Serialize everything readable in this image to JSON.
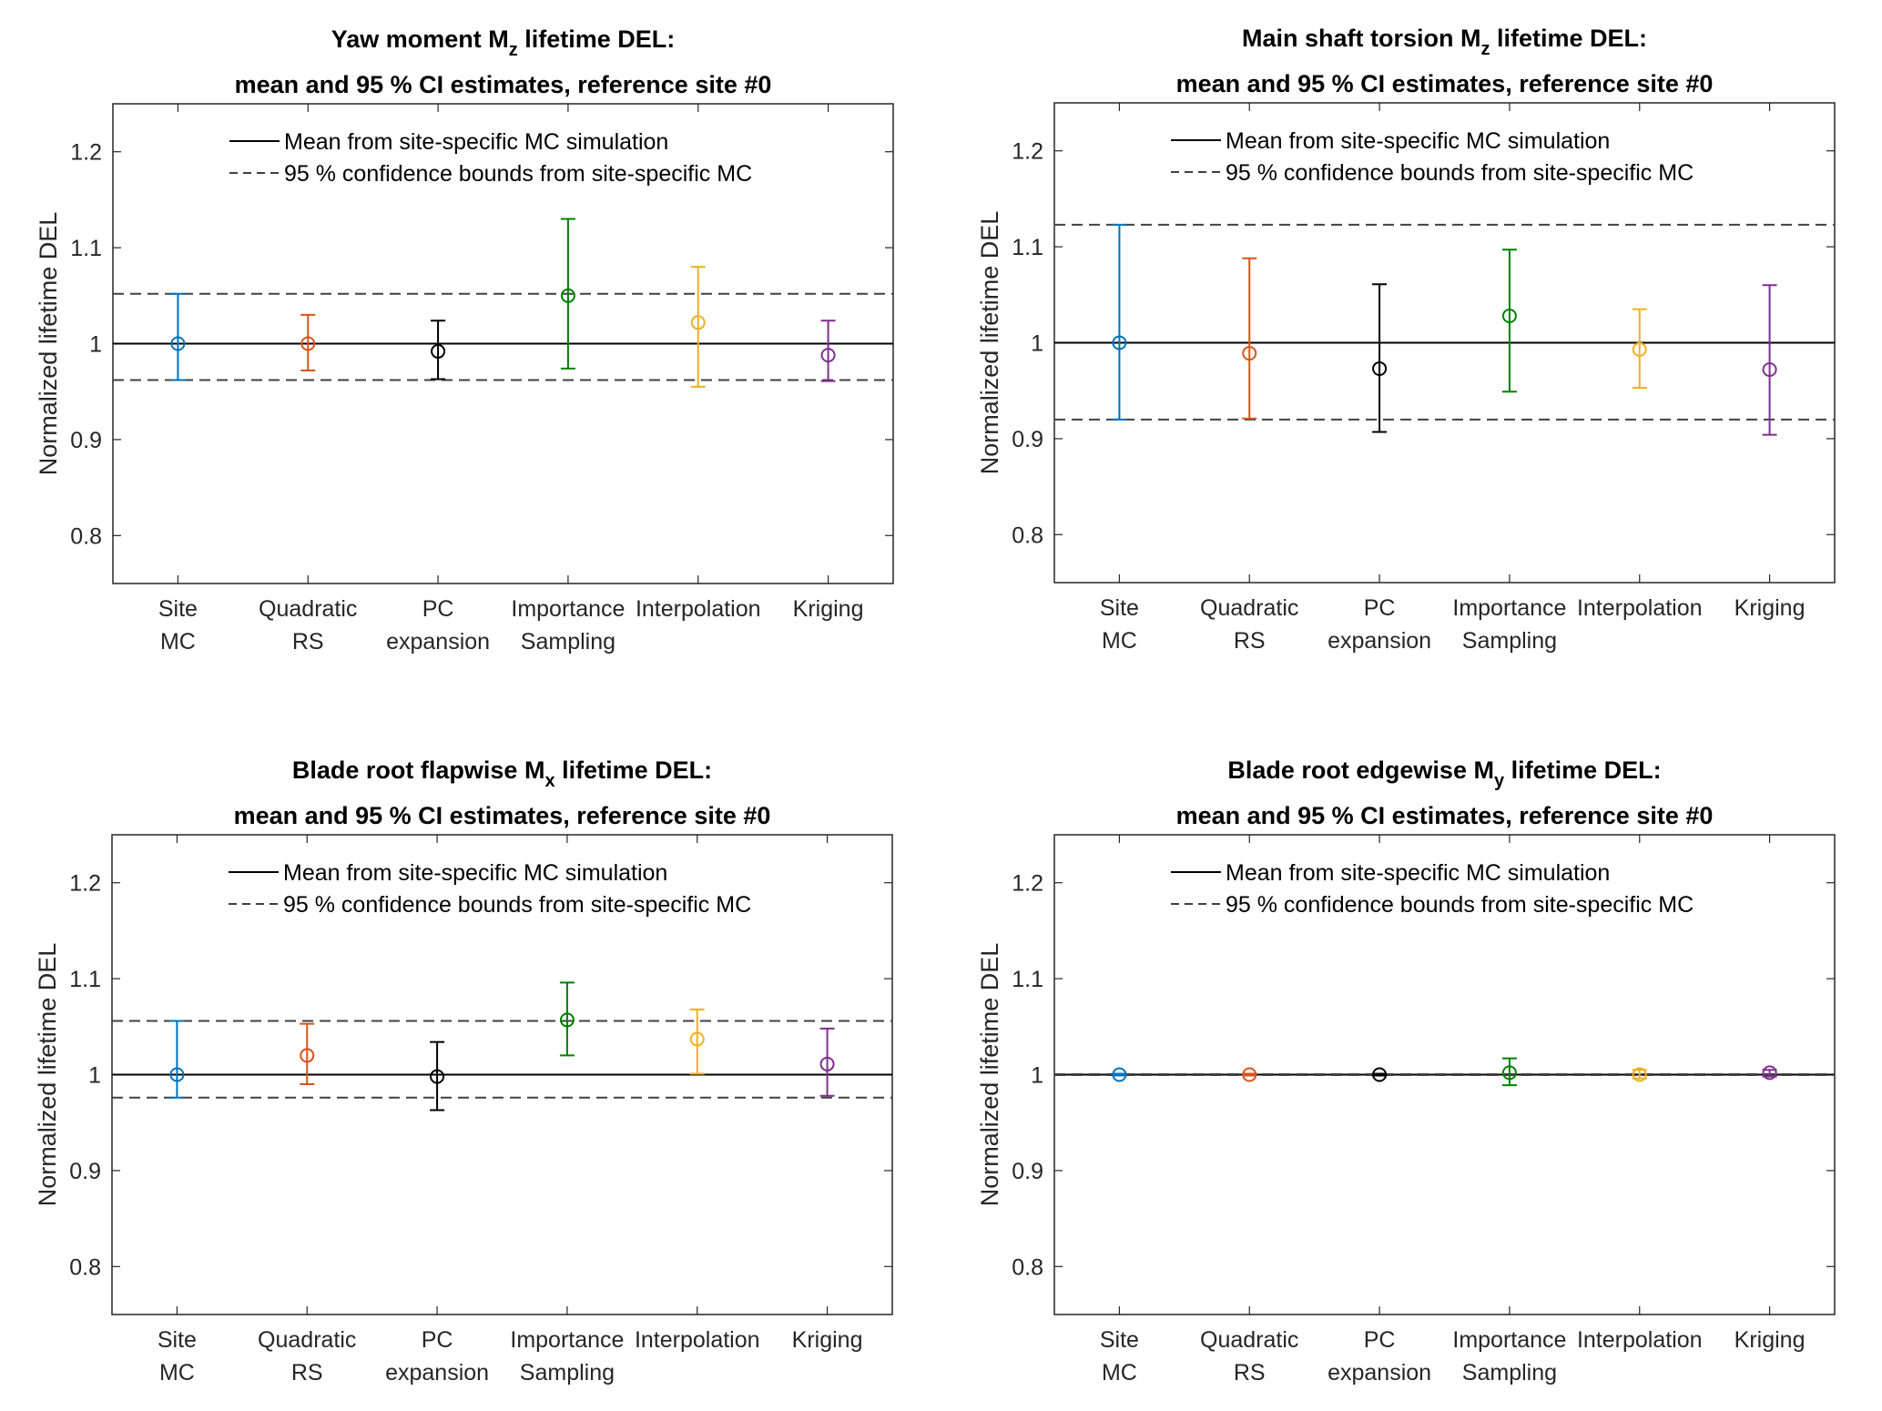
{
  "chart_data": [
    {
      "type": "errorbar",
      "title": [
        "Yaw moment M",
        "z",
        " lifetime DEL:"
      ],
      "title_line2": "mean and 95 % CI estimates, reference site #0",
      "xlabel": "",
      "ylabel": "Normalized lifetime DEL",
      "ylim": [
        0.75,
        1.25
      ],
      "yticks": [
        0.8,
        0.9,
        1.0,
        1.1,
        1.2
      ],
      "ytick_labels": [
        "0.8",
        "0.9",
        "1",
        "1.1",
        "1.2"
      ],
      "categories": [
        [
          "Site",
          "MC"
        ],
        [
          "Quadratic",
          "RS"
        ],
        [
          "PC",
          "expansion"
        ],
        [
          "Importance",
          "Sampling"
        ],
        [
          "Interpolation"
        ],
        [
          "Kriging"
        ]
      ],
      "series": [
        {
          "name": "Site MC",
          "color": "#0072BD",
          "mean": 1.0,
          "lower": 0.962,
          "upper": 1.052
        },
        {
          "name": "Quadratic RS",
          "color": "#D95319",
          "mean": 1.0,
          "lower": 0.972,
          "upper": 1.03
        },
        {
          "name": "PC expansion",
          "color": "#000000",
          "mean": 0.992,
          "lower": 0.963,
          "upper": 1.024
        },
        {
          "name": "Importance Sampling",
          "color": "#008000",
          "mean": 1.05,
          "lower": 0.974,
          "upper": 1.13
        },
        {
          "name": "Interpolation",
          "color": "#EDB120",
          "mean": 1.022,
          "lower": 0.955,
          "upper": 1.08
        },
        {
          "name": "Kriging",
          "color": "#7E2F8E",
          "mean": 0.988,
          "lower": 0.961,
          "upper": 1.024
        }
      ],
      "reference_mean": 1.0,
      "reference_ci": [
        0.962,
        1.052
      ],
      "legend": [
        "Mean from site-specific MC simulation",
        "95 % confidence bounds from site-specific MC"
      ],
      "legend_position": "top"
    },
    {
      "type": "errorbar",
      "title": [
        "Main shaft torsion M",
        "z",
        " lifetime DEL:"
      ],
      "title_line2": "mean and 95 % CI estimates, reference site #0",
      "xlabel": "",
      "ylabel": "Normalized lifetime DEL",
      "ylim": [
        0.75,
        1.25
      ],
      "yticks": [
        0.8,
        0.9,
        1.0,
        1.1,
        1.2
      ],
      "ytick_labels": [
        "0.8",
        "0.9",
        "1",
        "1.1",
        "1.2"
      ],
      "categories": [
        [
          "Site",
          "MC"
        ],
        [
          "Quadratic",
          "RS"
        ],
        [
          "PC",
          "expansion"
        ],
        [
          "Importance",
          "Sampling"
        ],
        [
          "Interpolation"
        ],
        [
          "Kriging"
        ]
      ],
      "series": [
        {
          "name": "Site MC",
          "color": "#0072BD",
          "mean": 1.0,
          "lower": 0.92,
          "upper": 1.123
        },
        {
          "name": "Quadratic RS",
          "color": "#D95319",
          "mean": 0.989,
          "lower": 0.921,
          "upper": 1.088
        },
        {
          "name": "PC expansion",
          "color": "#000000",
          "mean": 0.973,
          "lower": 0.907,
          "upper": 1.061
        },
        {
          "name": "Importance Sampling",
          "color": "#008000",
          "mean": 1.028,
          "lower": 0.949,
          "upper": 1.097
        },
        {
          "name": "Interpolation",
          "color": "#EDB120",
          "mean": 0.993,
          "lower": 0.953,
          "upper": 1.035
        },
        {
          "name": "Kriging",
          "color": "#7E2F8E",
          "mean": 0.972,
          "lower": 0.904,
          "upper": 1.06
        }
      ],
      "reference_mean": 1.0,
      "reference_ci": [
        0.92,
        1.123
      ],
      "legend": [
        "Mean from site-specific MC simulation",
        "95 % confidence bounds from site-specific MC"
      ],
      "legend_position": "top"
    },
    {
      "type": "errorbar",
      "title": [
        "Blade root flapwise M",
        "x",
        " lifetime DEL:"
      ],
      "title_line2": "mean and 95 % CI estimates, reference site #0",
      "xlabel": "",
      "ylabel": "Normalized lifetime DEL",
      "ylim": [
        0.75,
        1.25
      ],
      "yticks": [
        0.8,
        0.9,
        1.0,
        1.1,
        1.2
      ],
      "ytick_labels": [
        "0.8",
        "0.9",
        "1",
        "1.1",
        "1.2"
      ],
      "categories": [
        [
          "Site",
          "MC"
        ],
        [
          "Quadratic",
          "RS"
        ],
        [
          "PC",
          "expansion"
        ],
        [
          "Importance",
          "Sampling"
        ],
        [
          "Interpolation"
        ],
        [
          "Kriging"
        ]
      ],
      "series": [
        {
          "name": "Site MC",
          "color": "#0072BD",
          "mean": 1.0,
          "lower": 0.976,
          "upper": 1.056
        },
        {
          "name": "Quadratic RS",
          "color": "#D95319",
          "mean": 1.02,
          "lower": 0.99,
          "upper": 1.053
        },
        {
          "name": "PC expansion",
          "color": "#000000",
          "mean": 0.998,
          "lower": 0.963,
          "upper": 1.034
        },
        {
          "name": "Importance Sampling",
          "color": "#008000",
          "mean": 1.057,
          "lower": 1.02,
          "upper": 1.096
        },
        {
          "name": "Interpolation",
          "color": "#EDB120",
          "mean": 1.037,
          "lower": 1.001,
          "upper": 1.068
        },
        {
          "name": "Kriging",
          "color": "#7E2F8E",
          "mean": 1.011,
          "lower": 0.978,
          "upper": 1.048
        }
      ],
      "reference_mean": 1.0,
      "reference_ci": [
        0.976,
        1.056
      ],
      "legend": [
        "Mean from site-specific MC simulation",
        "95 % confidence bounds from site-specific MC"
      ],
      "legend_position": "top"
    },
    {
      "type": "errorbar",
      "title": [
        "Blade root edgewise M",
        "y",
        " lifetime DEL:"
      ],
      "title_line2": "mean and 95 % CI estimates, reference site #0",
      "xlabel": "",
      "ylabel": "Normalized lifetime DEL",
      "ylim": [
        0.75,
        1.25
      ],
      "yticks": [
        0.8,
        0.9,
        1.0,
        1.1,
        1.2
      ],
      "ytick_labels": [
        "0.8",
        "0.9",
        "1",
        "1.1",
        "1.2"
      ],
      "categories": [
        [
          "Site",
          "MC"
        ],
        [
          "Quadratic",
          "RS"
        ],
        [
          "PC",
          "expansion"
        ],
        [
          "Importance",
          "Sampling"
        ],
        [
          "Interpolation"
        ],
        [
          "Kriging"
        ]
      ],
      "series": [
        {
          "name": "Site MC",
          "color": "#0072BD",
          "mean": 1.0,
          "lower": 0.999,
          "upper": 1.001
        },
        {
          "name": "Quadratic RS",
          "color": "#D95319",
          "mean": 1.0,
          "lower": 0.999,
          "upper": 1.001
        },
        {
          "name": "PC expansion",
          "color": "#000000",
          "mean": 1.0,
          "lower": 0.999,
          "upper": 1.001
        },
        {
          "name": "Importance Sampling",
          "color": "#008000",
          "mean": 1.002,
          "lower": 0.989,
          "upper": 1.017
        },
        {
          "name": "Interpolation",
          "color": "#EDB120",
          "mean": 1.0,
          "lower": 0.996,
          "upper": 1.005
        },
        {
          "name": "Kriging",
          "color": "#7E2F8E",
          "mean": 1.002,
          "lower": 0.998,
          "upper": 1.005
        }
      ],
      "reference_mean": 1.0,
      "reference_ci": [
        0.9995,
        1.0005
      ],
      "legend": [
        "Mean from site-specific MC simulation",
        "95 % confidence bounds from site-specific MC"
      ],
      "legend_position": "top"
    }
  ]
}
